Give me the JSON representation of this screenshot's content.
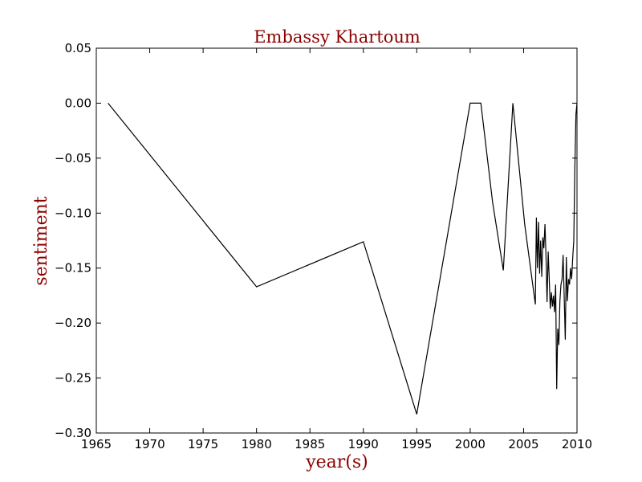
{
  "chart_data": {
    "type": "line",
    "title": "Embassy Khartoum",
    "xlabel": "year(s)",
    "ylabel": "sentiment",
    "xlim": [
      1965,
      2010
    ],
    "ylim": [
      -0.3,
      0.05
    ],
    "xticks": [
      "1965",
      "1970",
      "1975",
      "1980",
      "1985",
      "1990",
      "1995",
      "2000",
      "2005",
      "2010"
    ],
    "yticks": [
      "0.05",
      "0.00",
      "−0.05",
      "−0.10",
      "−0.15",
      "−0.20",
      "−0.25",
      "−0.30"
    ],
    "grid": false,
    "line_color": "#000000",
    "title_color": "#8b0000",
    "series": [
      {
        "x": [
          1966.1,
          1980.0,
          1990.0,
          1995.0,
          2000.0,
          2001.0,
          2002.1,
          2003.1,
          2004.0,
          2005.1,
          2006.1,
          2006.2,
          2006.3,
          2006.4,
          2006.5,
          2006.6,
          2006.7,
          2006.8,
          2006.9,
          2007.0,
          2007.1,
          2007.2,
          2007.3,
          2007.4,
          2007.5,
          2007.6,
          2007.7,
          2007.8,
          2007.9,
          2008.0,
          2008.1,
          2008.2,
          2008.3,
          2008.4,
          2008.5,
          2008.6,
          2008.7,
          2008.8,
          2008.9,
          2009.0,
          2009.1,
          2009.2,
          2009.3,
          2009.4,
          2009.5,
          2009.6,
          2009.7,
          2009.8,
          2009.9,
          2010.0
        ],
        "y": [
          0.0,
          -0.167,
          -0.126,
          -0.283,
          0.0,
          0.0,
          -0.09,
          -0.152,
          0.0,
          -0.11,
          -0.183,
          -0.104,
          -0.15,
          -0.108,
          -0.155,
          -0.125,
          -0.158,
          -0.122,
          -0.132,
          -0.11,
          -0.14,
          -0.181,
          -0.135,
          -0.16,
          -0.187,
          -0.172,
          -0.185,
          -0.175,
          -0.19,
          -0.165,
          -0.26,
          -0.205,
          -0.22,
          -0.18,
          -0.165,
          -0.16,
          -0.138,
          -0.175,
          -0.215,
          -0.14,
          -0.18,
          -0.16,
          -0.165,
          -0.15,
          -0.16,
          -0.14,
          -0.125,
          -0.06,
          -0.01,
          0.0
        ]
      }
    ]
  }
}
